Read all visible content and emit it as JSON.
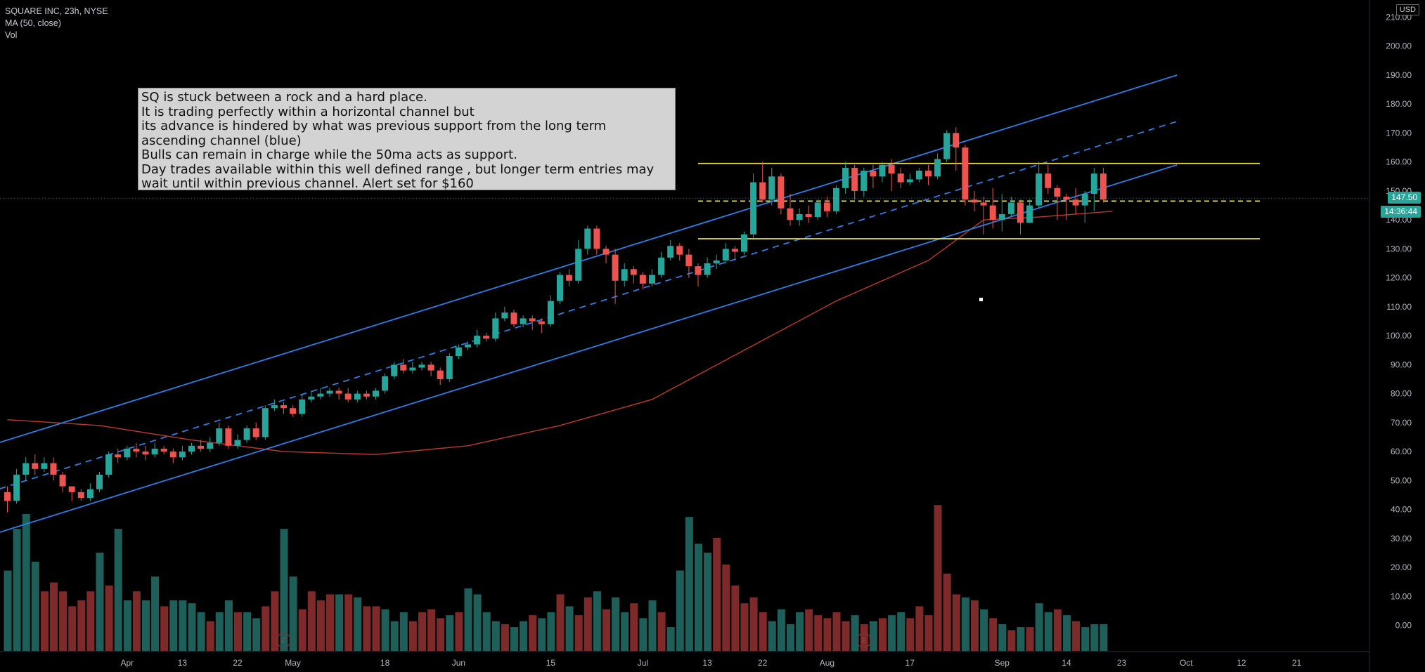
{
  "header": {
    "symbol_line": "SQUARE INC, 23h, NYSE",
    "ma_line": "MA (50, close)",
    "vol_line": "Vol"
  },
  "note": {
    "lines": [
      "SQ is stuck between a rock and a hard place.",
      "It is trading perfectly within a horizontal channel but",
      "its advance is hindered by what was previous support from the long term",
      "ascending channel (blue)",
      "Bulls can remain in charge while the 50ma acts as support.",
      "Day trades available within this well defined range , but longer term entries may",
      "wait until within previous channel. Alert set for $160"
    ]
  },
  "price_tags": {
    "last_price": "147.50",
    "countdown": "14:36:44",
    "currency": "USD"
  },
  "colors": {
    "up": "#26a69a",
    "down": "#ef5350",
    "vol_up": "#1f5f5a",
    "vol_down": "#7f2a2a",
    "channel": "#2a7ee6",
    "range": "#e8e04a",
    "ma": "#c0392b",
    "grid_text": "#b2b5be"
  },
  "chart_data": {
    "type": "candlestick",
    "title": "SQUARE INC, 23h, NYSE",
    "x_ticks": [
      {
        "d": 13,
        "label": "Apr"
      },
      {
        "d": 19,
        "label": "13"
      },
      {
        "d": 25,
        "label": "22"
      },
      {
        "d": 31,
        "label": "May"
      },
      {
        "d": 41,
        "label": "18"
      },
      {
        "d": 49,
        "label": "Jun"
      },
      {
        "d": 59,
        "label": "15"
      },
      {
        "d": 69,
        "label": "Jul"
      },
      {
        "d": 76,
        "label": "13"
      },
      {
        "d": 82,
        "label": "22"
      },
      {
        "d": 89,
        "label": "Aug"
      },
      {
        "d": 98,
        "label": "17"
      },
      {
        "d": 108,
        "label": "Sep"
      },
      {
        "d": 115,
        "label": "14"
      },
      {
        "d": 121,
        "label": "23"
      },
      {
        "d": 128,
        "label": "Oct"
      },
      {
        "d": 134,
        "label": "12"
      },
      {
        "d": 140,
        "label": "21"
      }
    ],
    "y_axis": {
      "min": -4,
      "max": 214,
      "step": 10,
      "labels": [
        "0.00",
        "10.00",
        "20.00",
        "30.00",
        "40.00",
        "50.00",
        "60.00",
        "70.00",
        "80.00",
        "90.00",
        "100.00",
        "110.00",
        "120.00",
        "130.00",
        "140.00",
        "150.00",
        "160.00",
        "170.00",
        "180.00",
        "190.00",
        "200.00",
        "210.00"
      ]
    },
    "candles": [
      [
        46,
        43,
        48,
        39
      ],
      [
        43,
        52,
        54,
        42
      ],
      [
        52,
        56,
        58,
        50
      ],
      [
        56,
        54,
        59,
        52
      ],
      [
        54,
        56,
        58,
        53
      ],
      [
        56,
        52,
        58,
        50
      ],
      [
        52,
        48,
        53,
        46
      ],
      [
        48,
        46,
        48,
        43
      ],
      [
        46,
        44,
        47,
        43
      ],
      [
        44,
        47,
        49,
        43
      ],
      [
        47,
        52,
        53,
        46
      ],
      [
        52,
        59,
        60,
        51
      ],
      [
        59,
        58,
        61,
        56
      ],
      [
        58,
        61,
        62,
        57
      ],
      [
        61,
        60,
        63,
        58
      ],
      [
        60,
        59,
        62,
        57
      ],
      [
        59,
        61,
        63,
        58
      ],
      [
        61,
        60,
        62,
        59
      ],
      [
        60,
        58,
        61,
        56
      ],
      [
        58,
        60,
        62,
        57
      ],
      [
        60,
        62,
        63,
        59
      ],
      [
        62,
        61,
        64,
        60
      ],
      [
        61,
        63,
        65,
        60
      ],
      [
        63,
        68,
        70,
        62
      ],
      [
        68,
        62,
        69,
        61
      ],
      [
        62,
        64,
        66,
        61
      ],
      [
        64,
        68,
        69,
        63
      ],
      [
        68,
        65,
        70,
        64
      ],
      [
        65,
        75,
        76,
        64
      ],
      [
        75,
        76,
        78,
        74
      ],
      [
        76,
        75,
        77,
        73
      ],
      [
        75,
        73,
        76,
        72
      ],
      [
        73,
        78,
        80,
        72
      ],
      [
        78,
        79,
        81,
        77
      ],
      [
        79,
        80,
        82,
        78
      ],
      [
        80,
        81,
        82,
        79
      ],
      [
        81,
        80,
        82,
        78
      ],
      [
        80,
        78,
        82,
        77
      ],
      [
        78,
        80,
        81,
        77
      ],
      [
        80,
        79,
        81,
        78
      ],
      [
        79,
        81,
        82,
        78
      ],
      [
        81,
        86,
        87,
        80
      ],
      [
        86,
        90,
        91,
        85
      ],
      [
        90,
        88,
        92,
        87
      ],
      [
        88,
        89,
        91,
        87
      ],
      [
        89,
        90,
        91,
        88
      ],
      [
        90,
        88,
        91,
        86
      ],
      [
        88,
        85,
        89,
        83
      ],
      [
        85,
        93,
        94,
        84
      ],
      [
        93,
        96,
        97,
        92
      ],
      [
        96,
        97,
        98,
        95
      ],
      [
        97,
        100,
        102,
        96
      ],
      [
        100,
        99,
        101,
        98
      ],
      [
        99,
        106,
        108,
        98
      ],
      [
        106,
        108,
        110,
        105
      ],
      [
        108,
        104,
        109,
        103
      ],
      [
        104,
        106,
        107,
        103
      ],
      [
        106,
        105,
        107,
        102
      ],
      [
        105,
        104,
        106,
        101
      ],
      [
        104,
        112,
        114,
        103
      ],
      [
        112,
        121,
        122,
        111
      ],
      [
        121,
        119,
        123,
        117
      ],
      [
        119,
        130,
        133,
        118
      ],
      [
        130,
        137,
        138,
        128
      ],
      [
        137,
        130,
        138,
        128
      ],
      [
        130,
        128,
        131,
        125
      ],
      [
        128,
        119,
        130,
        111
      ],
      [
        119,
        123,
        125,
        117
      ],
      [
        123,
        121,
        124,
        118
      ],
      [
        121,
        118,
        122,
        116
      ],
      [
        118,
        121,
        123,
        117
      ],
      [
        121,
        127,
        129,
        120
      ],
      [
        127,
        131,
        133,
        126
      ],
      [
        131,
        128,
        132,
        126
      ],
      [
        128,
        124,
        130,
        120
      ],
      [
        124,
        121,
        125,
        117
      ],
      [
        121,
        125,
        127,
        120
      ],
      [
        125,
        126,
        128,
        123
      ],
      [
        126,
        130,
        132,
        125
      ],
      [
        130,
        129,
        131,
        126
      ],
      [
        129,
        135,
        136,
        128
      ],
      [
        135,
        153,
        156,
        133
      ],
      [
        153,
        147,
        160,
        146
      ],
      [
        147,
        155,
        158,
        145
      ],
      [
        155,
        144,
        156,
        142
      ],
      [
        144,
        140,
        149,
        138
      ],
      [
        140,
        142,
        144,
        138
      ],
      [
        142,
        141,
        145,
        139
      ],
      [
        141,
        146,
        147,
        140
      ],
      [
        146,
        143,
        148,
        141
      ],
      [
        143,
        151,
        152,
        142
      ],
      [
        151,
        158,
        160,
        149
      ],
      [
        158,
        150,
        159,
        147
      ],
      [
        150,
        157,
        158,
        148
      ],
      [
        157,
        155,
        159,
        151
      ],
      [
        155,
        159,
        160,
        153
      ],
      [
        159,
        156,
        161,
        150
      ],
      [
        156,
        153,
        158,
        151
      ],
      [
        153,
        154,
        156,
        152
      ],
      [
        154,
        157,
        158,
        153
      ],
      [
        157,
        155,
        159,
        152
      ],
      [
        155,
        161,
        163,
        154
      ],
      [
        161,
        170,
        171,
        160
      ],
      [
        170,
        165,
        172,
        157
      ],
      [
        165,
        147,
        166,
        145
      ],
      [
        147,
        146,
        150,
        143
      ],
      [
        146,
        145,
        148,
        135
      ],
      [
        145,
        140,
        151,
        137
      ],
      [
        140,
        142,
        149,
        136
      ],
      [
        142,
        146,
        148,
        141
      ],
      [
        146,
        139,
        147,
        135
      ],
      [
        139,
        145,
        147,
        139
      ],
      [
        145,
        156,
        160,
        144
      ],
      [
        156,
        151,
        159,
        149
      ],
      [
        151,
        148,
        152,
        140
      ],
      [
        148,
        147,
        149,
        140
      ],
      [
        147,
        145,
        151,
        142
      ],
      [
        145,
        149,
        150,
        139
      ],
      [
        149,
        156,
        158,
        143
      ],
      [
        156,
        147,
        158,
        146
      ]
    ],
    "volumes": [
      [
        27,
        1
      ],
      [
        41,
        1
      ],
      [
        46,
        1
      ],
      [
        30,
        1
      ],
      [
        20,
        0
      ],
      [
        23,
        0
      ],
      [
        20,
        0
      ],
      [
        15,
        0
      ],
      [
        17,
        0
      ],
      [
        20,
        0
      ],
      [
        33,
        1
      ],
      [
        22,
        0
      ],
      [
        41,
        1
      ],
      [
        17,
        1
      ],
      [
        20,
        0
      ],
      [
        17,
        1
      ],
      [
        25,
        1
      ],
      [
        15,
        0
      ],
      [
        17,
        1
      ],
      [
        17,
        1
      ],
      [
        16,
        1
      ],
      [
        13,
        1
      ],
      [
        10,
        0
      ],
      [
        13,
        1
      ],
      [
        17,
        1
      ],
      [
        13,
        0
      ],
      [
        13,
        1
      ],
      [
        11,
        1
      ],
      [
        15,
        0
      ],
      [
        20,
        0
      ],
      [
        41,
        1
      ],
      [
        25,
        1
      ],
      [
        14,
        0
      ],
      [
        20,
        0
      ],
      [
        17,
        0
      ],
      [
        19,
        0
      ],
      [
        19,
        1
      ],
      [
        19,
        0
      ],
      [
        18,
        1
      ],
      [
        15,
        0
      ],
      [
        15,
        0
      ],
      [
        14,
        1
      ],
      [
        10,
        1
      ],
      [
        13,
        1
      ],
      [
        10,
        0
      ],
      [
        13,
        0
      ],
      [
        14,
        0
      ],
      [
        11,
        0
      ],
      [
        12,
        1
      ],
      [
        13,
        0
      ],
      [
        21,
        1
      ],
      [
        19,
        1
      ],
      [
        13,
        1
      ],
      [
        10,
        1
      ],
      [
        9,
        0
      ],
      [
        8,
        1
      ],
      [
        10,
        1
      ],
      [
        12,
        0
      ],
      [
        11,
        1
      ],
      [
        13,
        1
      ],
      [
        19,
        0
      ],
      [
        15,
        1
      ],
      [
        12,
        0
      ],
      [
        18,
        0
      ],
      [
        20,
        1
      ],
      [
        14,
        0
      ],
      [
        18,
        1
      ],
      [
        13,
        1
      ],
      [
        16,
        0
      ],
      [
        11,
        1
      ],
      [
        17,
        1
      ],
      [
        13,
        0
      ],
      [
        8,
        1
      ],
      [
        27,
        1
      ],
      [
        45,
        1
      ],
      [
        36,
        1
      ],
      [
        33,
        1
      ],
      [
        38,
        0
      ],
      [
        29,
        0
      ],
      [
        22,
        0
      ],
      [
        16,
        0
      ],
      [
        18,
        0
      ],
      [
        13,
        0
      ],
      [
        10,
        1
      ],
      [
        14,
        1
      ],
      [
        9,
        1
      ],
      [
        13,
        1
      ],
      [
        14,
        0
      ],
      [
        12,
        0
      ],
      [
        11,
        0
      ],
      [
        13,
        0
      ],
      [
        10,
        0
      ],
      [
        12,
        1
      ],
      [
        9,
        0
      ],
      [
        10,
        1
      ],
      [
        11,
        0
      ],
      [
        12,
        1
      ],
      [
        13,
        1
      ],
      [
        11,
        0
      ],
      [
        15,
        0
      ],
      [
        12,
        0
      ],
      [
        49,
        0
      ],
      [
        26,
        0
      ],
      [
        19,
        0
      ],
      [
        18,
        1
      ],
      [
        17,
        0
      ],
      [
        14,
        1
      ],
      [
        11,
        0
      ],
      [
        9,
        1
      ],
      [
        7,
        0
      ],
      [
        8,
        1
      ],
      [
        8,
        0
      ],
      [
        16,
        1
      ],
      [
        13,
        1
      ],
      [
        14,
        0
      ],
      [
        12,
        1
      ],
      [
        10,
        0
      ],
      [
        8,
        1
      ],
      [
        9,
        1
      ],
      [
        9,
        1
      ]
    ],
    "ma50": [
      [
        0,
        71
      ],
      [
        10,
        69
      ],
      [
        20,
        64
      ],
      [
        30,
        60
      ],
      [
        40,
        59
      ],
      [
        50,
        62
      ],
      [
        60,
        69
      ],
      [
        70,
        78
      ],
      [
        80,
        95
      ],
      [
        90,
        112
      ],
      [
        100,
        126
      ],
      [
        106,
        140
      ],
      [
        112,
        141
      ],
      [
        120,
        143
      ]
    ],
    "blue_upper": [
      [
        -2,
        62
      ],
      [
        127,
        190
      ]
    ],
    "blue_lower": [
      [
        -2,
        31
      ],
      [
        127,
        159
      ]
    ],
    "blue_mid_dashed": [
      [
        -2,
        46
      ],
      [
        127,
        174
      ]
    ],
    "yellow_top": {
      "y": 159.5,
      "from": 75,
      "to": 136
    },
    "yellow_bottom": {
      "y": 133.5,
      "from": 75,
      "to": 136
    },
    "yellow_mid_dashed": {
      "y": 146.5,
      "from": 75,
      "to": 136
    },
    "last_price": 147.5,
    "events": [
      30,
      93
    ]
  }
}
